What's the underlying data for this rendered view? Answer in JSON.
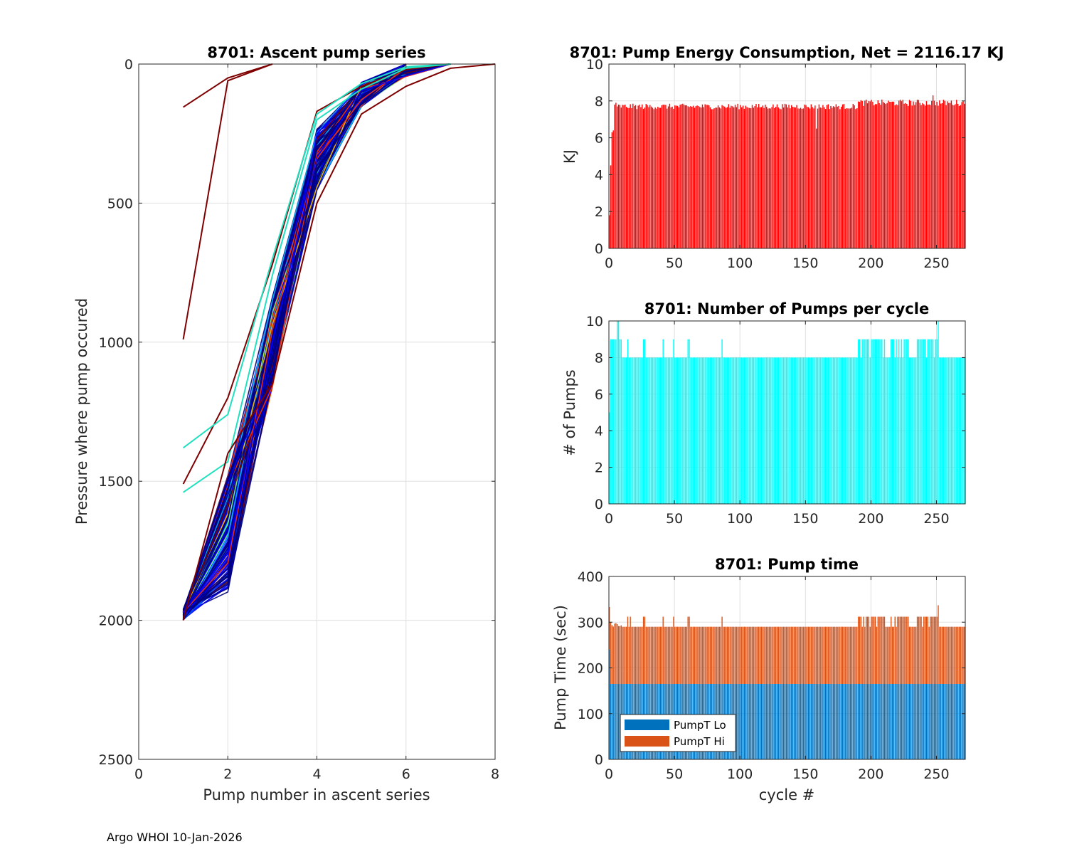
{
  "footer": "Argo WHOI 10-Jan-2026",
  "chart_data": [
    {
      "id": "ascent",
      "type": "line",
      "title": "8701: Ascent pump series",
      "xlabel": "Pump number in ascent series",
      "ylabel": "Pressure where pump occured",
      "xlim": [
        0,
        8
      ],
      "ylim": [
        0,
        2500
      ],
      "y_reversed": true,
      "grid": true,
      "xticks": [
        0,
        2,
        4,
        6,
        8
      ],
      "yticks": [
        0,
        500,
        1000,
        1500,
        2000,
        2500
      ],
      "color_scale": [
        "#00007f",
        "#0000ff",
        "#0050ff",
        "#00c0ff",
        "#20e0c0",
        "#80ff70",
        "#ffc000",
        "#ff3000",
        "#7f0000"
      ],
      "typical_profile": [
        [
          1,
          2000
        ],
        [
          2,
          1690
        ],
        [
          3,
          1000
        ],
        [
          4,
          300
        ],
        [
          5,
          110
        ],
        [
          6,
          30
        ],
        [
          7,
          3
        ]
      ],
      "outlier_profiles": [
        {
          "color": "#7f0000",
          "points": [
            [
              1,
              155
            ],
            [
              2,
              50
            ],
            [
              3,
              0
            ]
          ]
        },
        {
          "color": "#7f0000",
          "points": [
            [
              1,
              990
            ],
            [
              2,
              60
            ],
            [
              3,
              0
            ]
          ]
        },
        {
          "color": "#7f0000",
          "points": [
            [
              1,
              1510
            ],
            [
              2,
              1200
            ],
            [
              3,
              720
            ],
            [
              4,
              170
            ],
            [
              5,
              80
            ],
            [
              6,
              20
            ],
            [
              7,
              0
            ]
          ]
        },
        {
          "color": "#20e0c0",
          "points": [
            [
              1,
              1380
            ],
            [
              2,
              1260
            ],
            [
              3,
              700
            ],
            [
              4,
              180
            ],
            [
              5,
              70
            ],
            [
              6,
              10
            ],
            [
              7,
              0
            ]
          ]
        },
        {
          "color": "#20e0c0",
          "points": [
            [
              1,
              1540
            ],
            [
              2,
              1430
            ],
            [
              3,
              760
            ],
            [
              4,
              200
            ],
            [
              5,
              90
            ],
            [
              6,
              15
            ],
            [
              7,
              0
            ]
          ]
        },
        {
          "color": "#7f0000",
          "points": [
            [
              1,
              2000
            ],
            [
              2,
              1400
            ],
            [
              3,
              1150
            ],
            [
              4,
              500
            ],
            [
              5,
              180
            ],
            [
              6,
              80
            ],
            [
              7,
              15
            ],
            [
              8,
              0
            ]
          ]
        }
      ]
    },
    {
      "id": "energy",
      "type": "bar",
      "title": "8701: Pump Energy Consumption,  Net = 2116.17 KJ",
      "xlabel": "",
      "ylabel": "KJ",
      "xlim": [
        0,
        272
      ],
      "ylim": [
        0,
        10
      ],
      "grid": true,
      "xticks": [
        0,
        50,
        100,
        150,
        200,
        250
      ],
      "yticks": [
        0,
        2,
        4,
        6,
        8,
        10
      ],
      "color": "#ff0000",
      "cycles": 272,
      "early_values": [
        1.8,
        4.5,
        6.3,
        6.4,
        7.8,
        7.9,
        7.7,
        7.8
      ],
      "typical_value": 7.7,
      "high_value_span": [
        190,
        272
      ],
      "high_value": 7.9,
      "max_value": 8.3,
      "dip_cycle": 158,
      "dip_value": 6.5
    },
    {
      "id": "pumps",
      "type": "bar",
      "title": "8701: Number of Pumps per cycle",
      "xlabel": "",
      "ylabel": "# of Pumps",
      "xlim": [
        0,
        272
      ],
      "ylim": [
        0,
        10
      ],
      "grid": true,
      "xticks": [
        0,
        50,
        100,
        150,
        200,
        250
      ],
      "yticks": [
        0,
        2,
        4,
        6,
        8,
        10
      ],
      "color": "#00ffff",
      "cycles": 272,
      "early_values": [
        5,
        9,
        9,
        9,
        9,
        9,
        10,
        10,
        9,
        9
      ],
      "typical_value": 8,
      "high_spans": [
        [
          190,
          210
        ],
        [
          215,
          228
        ],
        [
          235,
          251
        ]
      ],
      "high_value": 9,
      "peak_cycle": 251,
      "peak_value": 10
    },
    {
      "id": "pumptime",
      "type": "bar",
      "stacked": true,
      "title": "8701: Pump time",
      "xlabel": "cycle #",
      "ylabel": "Pump Time (sec)",
      "xlim": [
        0,
        272
      ],
      "ylim": [
        0,
        400
      ],
      "grid": true,
      "xticks": [
        0,
        50,
        100,
        150,
        200,
        250
      ],
      "yticks": [
        0,
        100,
        200,
        300,
        400
      ],
      "cycles": 272,
      "series": [
        {
          "name": "PumpT Lo",
          "color": "#0072bd",
          "typical_value": 165,
          "first_value": 240
        },
        {
          "name": "PumpT Hi",
          "color": "#d95319",
          "typical_total": 290,
          "high_total": 312,
          "first_total": 333,
          "max_total": 337
        }
      ],
      "legend_position": "bottom-left"
    }
  ]
}
